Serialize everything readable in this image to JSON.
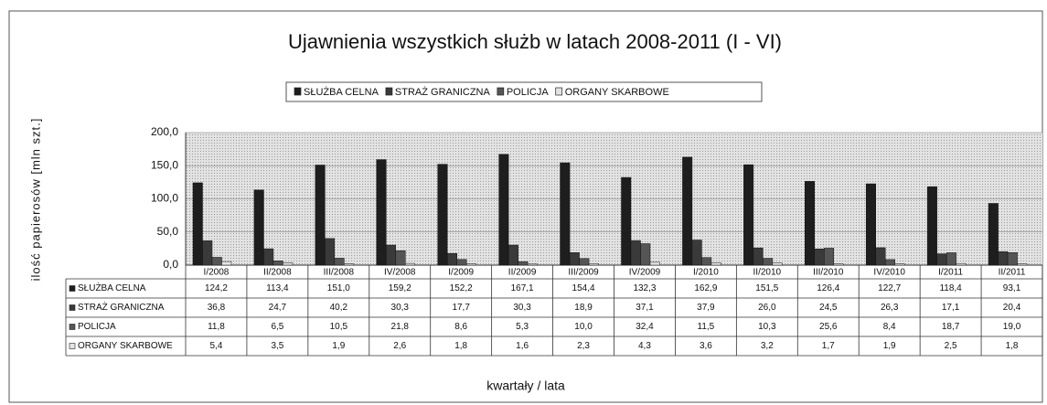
{
  "chart_data": {
    "type": "bar",
    "title": "Ujawnienia wszystkich służb w latach 2008-2011 (I - VI)",
    "y_label": "ilość papierosów [mln szt.]",
    "x_label": "kwartały / lata",
    "categories": [
      "I/2008",
      "II/2008",
      "III/2008",
      "IV/2008",
      "I/2009",
      "II/2009",
      "III/2009",
      "IV/2009",
      "I/2010",
      "II/2010",
      "III/2010",
      "IV/2010",
      "I/2011",
      "II/2011"
    ],
    "series": [
      {
        "name": "SŁUŻBA CELNA",
        "color": "#1e1e1e",
        "values": [
          124.2,
          113.4,
          151.0,
          159.2,
          152.2,
          167.1,
          154.4,
          132.3,
          162.9,
          151.5,
          126.4,
          122.7,
          118.4,
          93.1
        ],
        "value_labels": [
          "124,2",
          "113,4",
          "151,0",
          "159,2",
          "152,2",
          "167,1",
          "154,4",
          "132,3",
          "162,9",
          "151,5",
          "126,4",
          "122,7",
          "118,4",
          "93,1"
        ]
      },
      {
        "name": "STRAŻ GRANICZNA",
        "color": "#3a3a3a",
        "values": [
          36.8,
          24.7,
          40.2,
          30.3,
          17.7,
          30.3,
          18.9,
          37.1,
          37.9,
          26.0,
          24.5,
          26.3,
          17.1,
          20.4
        ],
        "value_labels": [
          "36,8",
          "24,7",
          "40,2",
          "30,3",
          "17,7",
          "30,3",
          "18,9",
          "37,1",
          "37,9",
          "26,0",
          "24,5",
          "26,3",
          "17,1",
          "20,4"
        ]
      },
      {
        "name": "POLICJA",
        "color": "#555555",
        "values": [
          11.8,
          6.5,
          10.5,
          21.8,
          8.6,
          5.3,
          10.0,
          32.4,
          11.5,
          10.3,
          25.6,
          8.4,
          18.7,
          19.0
        ],
        "value_labels": [
          "11,8",
          "6,5",
          "10,5",
          "21,8",
          "8,6",
          "5,3",
          "10,0",
          "32,4",
          "11,5",
          "10,3",
          "25,6",
          "8,4",
          "18,7",
          "19,0"
        ]
      },
      {
        "name": "ORGANY SKARBOWE",
        "color": "#e4e4e4",
        "values": [
          5.4,
          3.5,
          1.9,
          2.6,
          1.8,
          1.6,
          2.3,
          4.3,
          3.6,
          3.2,
          1.7,
          1.9,
          2.5,
          1.8
        ],
        "value_labels": [
          "5,4",
          "3,5",
          "1,9",
          "2,6",
          "1,8",
          "1,6",
          "2,3",
          "4,3",
          "3,6",
          "3,2",
          "1,7",
          "1,9",
          "2,5",
          "1,8"
        ]
      }
    ],
    "ylim": [
      0,
      200
    ],
    "yticks": [
      {
        "value": 0,
        "label": "0,0"
      },
      {
        "value": 50,
        "label": "50,0"
      },
      {
        "value": 100,
        "label": "100,0"
      },
      {
        "value": 150,
        "label": "150,0"
      },
      {
        "value": 200,
        "label": "200,0"
      }
    ],
    "grid": true
  }
}
